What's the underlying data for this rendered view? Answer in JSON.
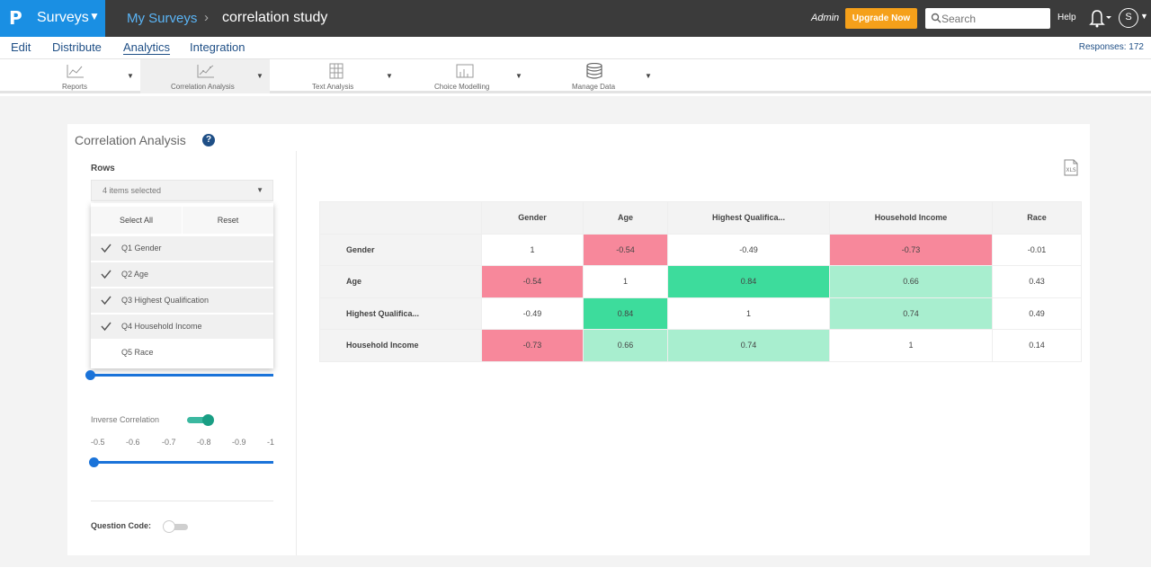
{
  "header": {
    "logo": "P",
    "product": "Surveys",
    "breadcrumb_root": "My Surveys",
    "breadcrumb_sep": "›",
    "survey_name": "correlation study",
    "admin": "Admin",
    "upgrade": "Upgrade Now",
    "search_placeholder": "Search",
    "help": "Help",
    "avatar_initial": "S"
  },
  "nav": {
    "items": [
      "Edit",
      "Distribute",
      "Analytics",
      "Integration"
    ],
    "active": "Analytics",
    "responses": "Responses: 172"
  },
  "toolbar": {
    "items": [
      {
        "label": "Reports",
        "icon": "line-chart-icon"
      },
      {
        "label": "Correlation Analysis",
        "icon": "scatter-chart-icon",
        "active": true
      },
      {
        "label": "Text Analysis",
        "icon": "text-grid-icon"
      },
      {
        "label": "Choice Modelling",
        "icon": "bar-chart-icon"
      },
      {
        "label": "Manage Data",
        "icon": "database-icon"
      }
    ]
  },
  "panel": {
    "title": "Correlation Analysis",
    "help": "?",
    "rows_label": "Rows",
    "rows_selected": "4 items selected",
    "select_all": "Select All",
    "reset": "Reset",
    "options": [
      {
        "label": "Q1 Gender",
        "checked": true
      },
      {
        "label": "Q2 Age",
        "checked": true
      },
      {
        "label": "Q3 Highest Qualification",
        "checked": true
      },
      {
        "label": "Q4 Household Income",
        "checked": true
      },
      {
        "label": "Q5 Race",
        "checked": false
      }
    ],
    "inverse_label": "Inverse Correlation",
    "inverse_on": true,
    "inverse_ticks": [
      "-0.5",
      "-0.6",
      "-0.7",
      "-0.8",
      "-0.9",
      "-1"
    ],
    "question_code_label": "Question Code:",
    "question_code_on": false,
    "export_label": "XLS"
  },
  "matrix": {
    "columns": [
      "Gender",
      "Age",
      "Highest Qualifica...",
      "Household Income",
      "Race"
    ],
    "rows": [
      {
        "label": "Gender",
        "values": [
          "1",
          "-0.54",
          "-0.49",
          "-0.73",
          "-0.01"
        ]
      },
      {
        "label": "Age",
        "values": [
          "-0.54",
          "1",
          "0.84",
          "0.66",
          "0.43"
        ]
      },
      {
        "label": "Highest Qualifica...",
        "values": [
          "-0.49",
          "0.84",
          "1",
          "0.74",
          "0.49"
        ]
      },
      {
        "label": "Household Income",
        "values": [
          "-0.73",
          "0.66",
          "0.74",
          "1",
          "0.14"
        ]
      }
    ],
    "colors": {
      "strong_negative": "#f7889b",
      "strong_positive": "#3ddc9c",
      "moderate_positive": "#a8eecf",
      "neutral": "#ffffff"
    },
    "highlight": [
      [
        "neutral",
        "strong_negative",
        "neutral",
        "strong_negative",
        "neutral"
      ],
      [
        "strong_negative",
        "neutral",
        "strong_positive",
        "moderate_positive",
        "neutral"
      ],
      [
        "neutral",
        "strong_positive",
        "neutral",
        "moderate_positive",
        "neutral"
      ],
      [
        "strong_negative",
        "moderate_positive",
        "moderate_positive",
        "neutral",
        "neutral"
      ]
    ]
  }
}
